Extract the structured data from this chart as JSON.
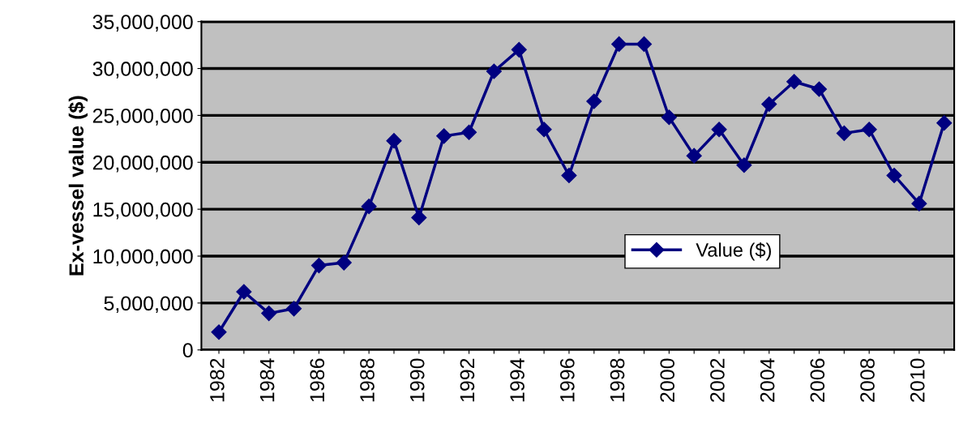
{
  "chart_data": {
    "type": "line",
    "ylabel": "Ex-vessel value ($)",
    "categories": [
      "1982",
      null,
      "1984",
      null,
      "1986",
      null,
      "1988",
      null,
      "1990",
      null,
      "1992",
      null,
      "1994",
      null,
      "1996",
      null,
      "1998",
      null,
      "2000",
      null,
      "2002",
      null,
      "2004",
      null,
      "2006",
      null,
      "2008",
      null,
      "2010",
      null
    ],
    "series": [
      {
        "name": "Value ($)",
        "color": "#000080",
        "values": [
          1900000,
          6200000,
          3900000,
          4400000,
          9000000,
          9300000,
          15300000,
          22300000,
          14100000,
          22800000,
          23200000,
          29700000,
          32000000,
          23500000,
          18600000,
          26500000,
          32600000,
          32600000,
          24800000,
          20700000,
          23500000,
          19700000,
          26200000,
          28600000,
          27800000,
          23100000,
          23500000,
          18600000,
          15600000,
          24200000
        ]
      }
    ],
    "ylim": [
      0,
      35000000
    ],
    "yticks": [
      0,
      {
        "value": 5000000,
        "label": "5,000,000"
      },
      {
        "value": 10000000,
        "label": "10,000,000"
      },
      {
        "value": 15000000,
        "label": "15,000,000"
      },
      {
        "value": 20000000,
        "label": "20,000,000"
      },
      {
        "value": 25000000,
        "label": "25,000,000"
      },
      {
        "value": 30000000,
        "label": "30,000,000"
      },
      {
        "value": 35000000,
        "label": "35,000,000"
      }
    ],
    "grid": "y",
    "legend": "right",
    "marker": "diamond",
    "line_style": "solid"
  }
}
